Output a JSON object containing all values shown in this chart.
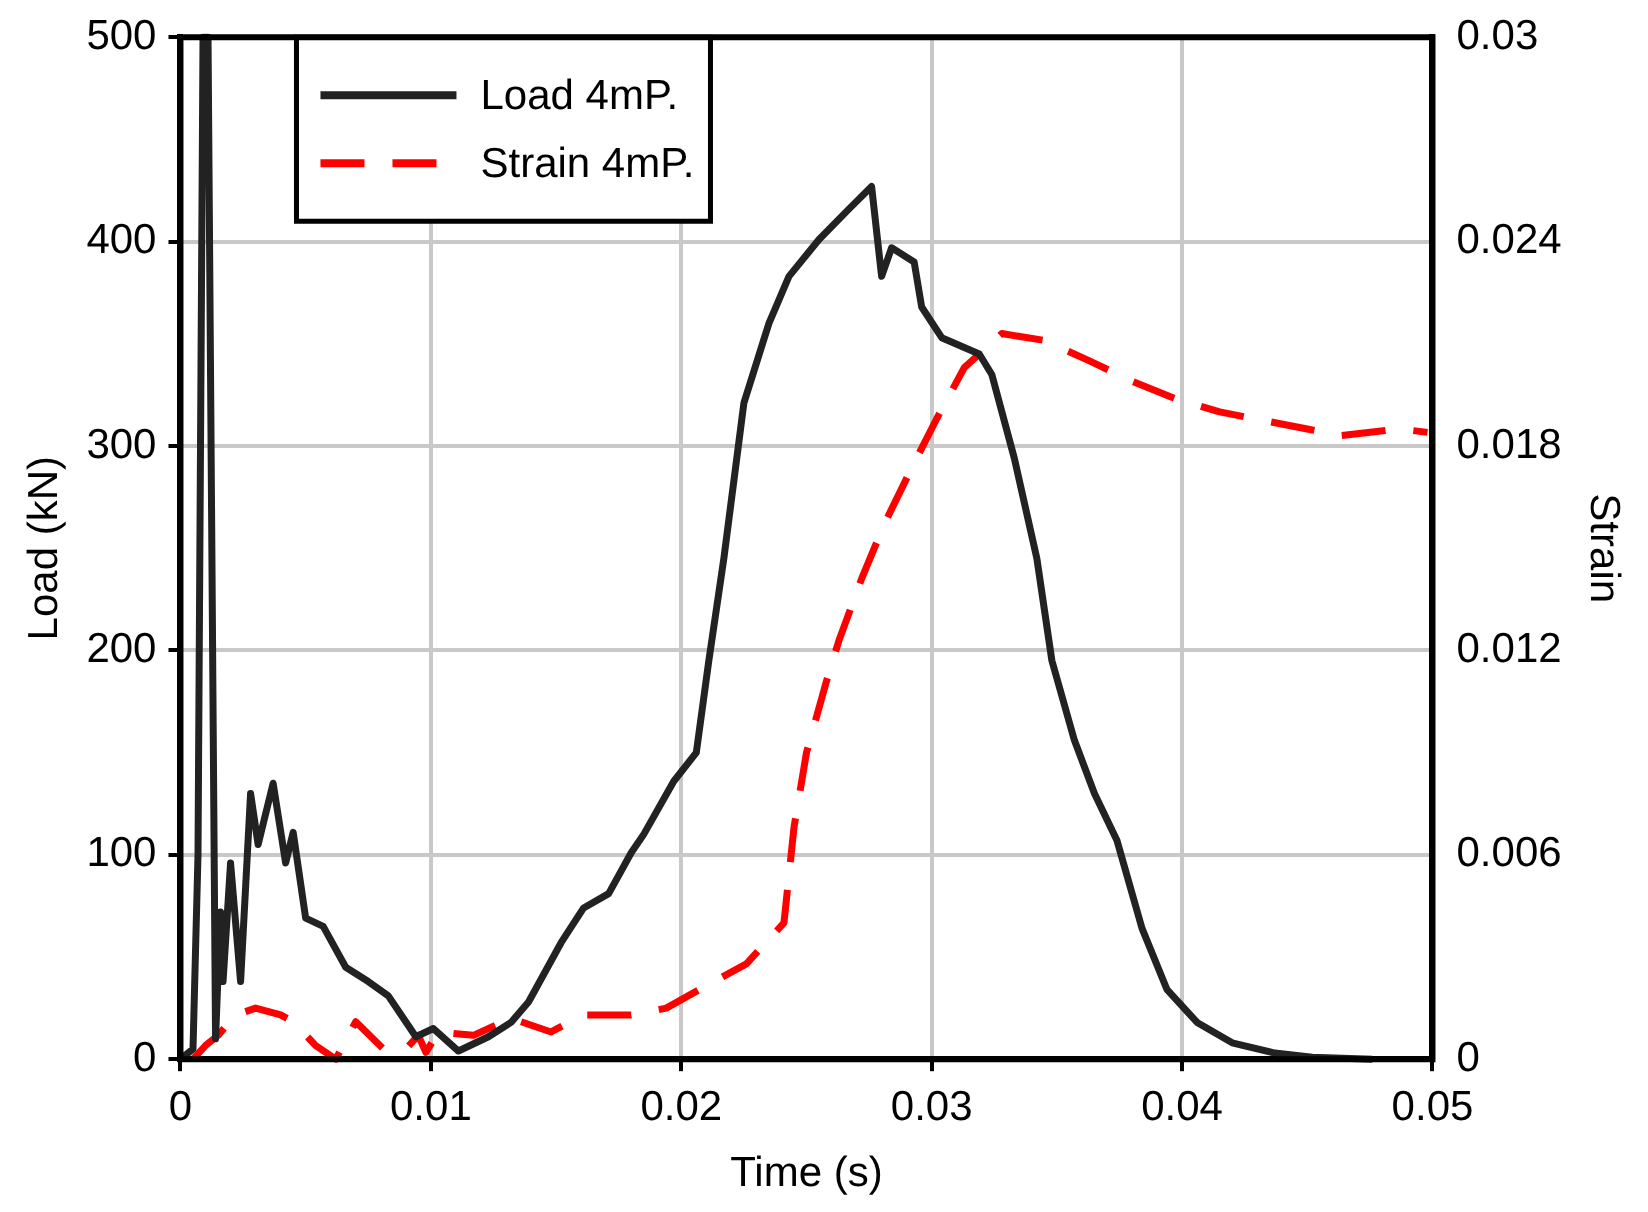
{
  "chart_data": {
    "type": "line",
    "xlabel": "Time (s)",
    "ylabel": "Load (kN)",
    "y2label": "Strain",
    "xlim": [
      0,
      0.05
    ],
    "xticks": [
      0,
      0.01,
      0.02,
      0.03,
      0.04,
      0.05
    ],
    "ylim": [
      0,
      500
    ],
    "yticks": [
      0,
      100,
      200,
      300,
      400,
      500
    ],
    "y2lim": [
      0,
      0.03
    ],
    "y2ticks": [
      0,
      0.006,
      0.012,
      0.018,
      0.024,
      0.03
    ],
    "grid": true,
    "legend": "top left",
    "marker": "none",
    "series": [
      {
        "name": "Load 4mP.",
        "color": "#222222",
        "line_style": "solid",
        "x": [
          0,
          0.0005,
          0.0007,
          0.0009,
          0.0011,
          0.0014,
          0.0016,
          0.0017,
          0.002,
          0.0024,
          0.0028,
          0.0031,
          0.0037,
          0.0042,
          0.0045,
          0.005,
          0.0057,
          0.0066,
          0.0075,
          0.0083,
          0.0094,
          0.0101,
          0.0111,
          0.0123,
          0.0132,
          0.0139,
          0.0152,
          0.0161,
          0.0171,
          0.018,
          0.0185,
          0.0197,
          0.0206,
          0.0211,
          0.0217,
          0.0225,
          0.0235,
          0.0243,
          0.0255,
          0.0267,
          0.0276,
          0.028,
          0.0284,
          0.0293,
          0.0296,
          0.0304,
          0.0319,
          0.0324,
          0.0333,
          0.0342,
          0.0348,
          0.0357,
          0.0365,
          0.0374,
          0.0384,
          0.0394,
          0.0406,
          0.042,
          0.0437,
          0.0452,
          0.0476
        ],
        "values": [
          0,
          5,
          100,
          500,
          500,
          10,
          72,
          38,
          96,
          38,
          130,
          105,
          135,
          96,
          111,
          69,
          65,
          45,
          38,
          31,
          11,
          15,
          4,
          11,
          18,
          28,
          57,
          74,
          81,
          101,
          110,
          136,
          150,
          195,
          245,
          321,
          360,
          383,
          401,
          416,
          427,
          383,
          397,
          390,
          368,
          353,
          345,
          335,
          294,
          245,
          195,
          156,
          130,
          107,
          64,
          34,
          18,
          8,
          3,
          1,
          0
        ]
      },
      {
        "name": "Strain 4mP.",
        "color": "#ff0000",
        "line_style": "dashed",
        "axis": "y2",
        "x": [
          0.0005,
          0.001,
          0.0015,
          0.0022,
          0.003,
          0.004,
          0.0045,
          0.0054,
          0.0062,
          0.007,
          0.0081,
          0.009,
          0.0095,
          0.0098,
          0.0103,
          0.0117,
          0.0132,
          0.0148,
          0.0161,
          0.018,
          0.0194,
          0.0211,
          0.0226,
          0.0241,
          0.0245,
          0.025,
          0.0258,
          0.0263,
          0.0272,
          0.0281,
          0.0293,
          0.0302,
          0.0313,
          0.0328,
          0.0345,
          0.0363,
          0.038,
          0.0397,
          0.0415,
          0.0429,
          0.045,
          0.0463,
          0.0487,
          0.0498
        ],
        "values": [
          0,
          0.0004,
          0.0007,
          0.0013,
          0.0015,
          0.0013,
          0.0011,
          0.0004,
          0,
          0.0011,
          0.0003,
          0.0003,
          0.0007,
          0.0002,
          0.0008,
          0.0007,
          0.0012,
          0.0008,
          0.0013,
          0.0013,
          0.0015,
          0.0022,
          0.0028,
          0.004,
          0.0068,
          0.009,
          0.0111,
          0.0123,
          0.0141,
          0.0157,
          0.0175,
          0.0188,
          0.0203,
          0.0213,
          0.0211,
          0.0205,
          0.0199,
          0.0194,
          0.019,
          0.0188,
          0.0185,
          0.0183,
          0.0185,
          0.0184
        ]
      }
    ]
  }
}
